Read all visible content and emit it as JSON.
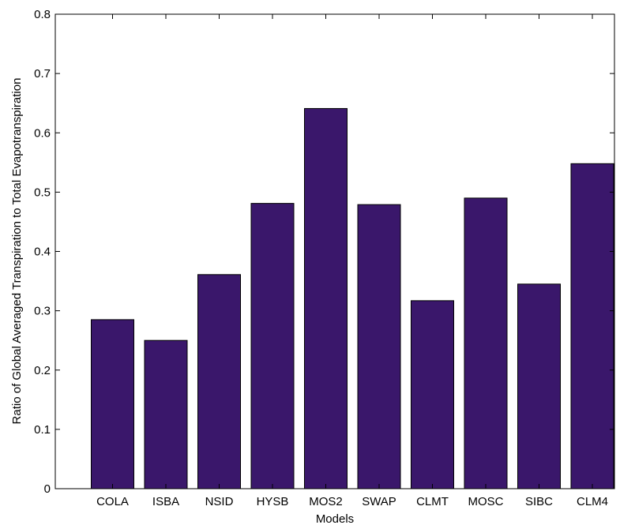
{
  "chart_data": {
    "type": "bar",
    "title": "",
    "xlabel": "Models",
    "ylabel": "Ratio of Global Averaged Transpiration to Total Evapotranspiration",
    "categories": [
      "COLA",
      "ISBA",
      "NSID",
      "HYSB",
      "MOS2",
      "SWAP",
      "CLMT",
      "MOSC",
      "SIBC",
      "CLM4"
    ],
    "values": [
      0.285,
      0.25,
      0.361,
      0.481,
      0.641,
      0.479,
      0.317,
      0.49,
      0.345,
      0.548
    ],
    "ylim": [
      0,
      0.8
    ],
    "yticks": [
      "0",
      "0.1",
      "0.2",
      "0.3",
      "0.4",
      "0.5",
      "0.6",
      "0.7",
      "0.8"
    ],
    "grid": false,
    "bar_color": "#3a176b",
    "edge_color": "#000000"
  }
}
